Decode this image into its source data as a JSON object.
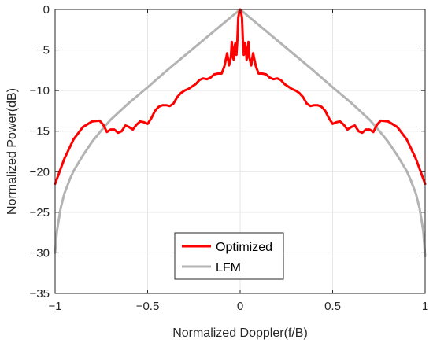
{
  "chart_data": {
    "type": "line",
    "title": "",
    "xlabel": "Normalized Doppler(f/B)",
    "ylabel": "Normalized Power(dB)",
    "xlim": [
      -1,
      1
    ],
    "ylim": [
      -35,
      0
    ],
    "xticks": [
      -1,
      -0.5,
      0,
      0.5,
      1
    ],
    "xtick_labels": [
      "−1",
      "−0.5",
      "0",
      "0.5",
      "1"
    ],
    "yticks": [
      0,
      -5,
      -10,
      -15,
      -20,
      -25,
      -30,
      -35
    ],
    "ytick_labels": [
      "0",
      "−5",
      "−10",
      "−15",
      "−20",
      "−25",
      "−30",
      "−35"
    ],
    "grid": true,
    "legend_position": "bottom-center",
    "series": [
      {
        "name": "Optimized",
        "color": "#ff0000",
        "x": [
          -1,
          -0.95,
          -0.9,
          -0.85,
          -0.8,
          -0.76,
          -0.74,
          -0.72,
          -0.7,
          -0.68,
          -0.66,
          -0.64,
          -0.62,
          -0.6,
          -0.58,
          -0.56,
          -0.54,
          -0.52,
          -0.5,
          -0.48,
          -0.46,
          -0.44,
          -0.42,
          -0.4,
          -0.38,
          -0.36,
          -0.34,
          -0.32,
          -0.3,
          -0.28,
          -0.26,
          -0.24,
          -0.22,
          -0.2,
          -0.18,
          -0.16,
          -0.14,
          -0.12,
          -0.1,
          -0.085,
          -0.07,
          -0.06,
          -0.05,
          -0.045,
          -0.04,
          -0.035,
          -0.03,
          -0.025,
          -0.02,
          -0.015,
          -0.01,
          -0.005,
          0,
          0.005,
          0.01,
          0.015,
          0.02,
          0.025,
          0.03,
          0.035,
          0.04,
          0.045,
          0.05,
          0.06,
          0.07,
          0.085,
          0.1,
          0.12,
          0.14,
          0.16,
          0.18,
          0.2,
          0.22,
          0.24,
          0.26,
          0.28,
          0.3,
          0.32,
          0.34,
          0.36,
          0.38,
          0.4,
          0.42,
          0.44,
          0.46,
          0.48,
          0.5,
          0.52,
          0.54,
          0.56,
          0.58,
          0.6,
          0.62,
          0.64,
          0.66,
          0.68,
          0.7,
          0.72,
          0.74,
          0.76,
          0.8,
          0.85,
          0.9,
          0.95,
          1
        ],
        "y": [
          -21.5,
          -18.4,
          -16.0,
          -14.5,
          -13.8,
          -13.7,
          -14.2,
          -15.1,
          -14.8,
          -14.8,
          -15.2,
          -15.0,
          -14.3,
          -14.5,
          -14.8,
          -14.2,
          -13.8,
          -13.9,
          -14.1,
          -13.4,
          -12.5,
          -12.0,
          -11.8,
          -11.8,
          -11.9,
          -11.6,
          -10.8,
          -10.3,
          -10.0,
          -9.8,
          -9.5,
          -9.2,
          -8.7,
          -8.5,
          -8.6,
          -8.4,
          -8.0,
          -7.9,
          -7.9,
          -7.0,
          -5.4,
          -6.9,
          -5.9,
          -4.0,
          -5.7,
          -6.2,
          -4.6,
          -4.1,
          -5.6,
          -3.8,
          -1.0,
          -0.3,
          0.0,
          -0.3,
          -1.0,
          -3.8,
          -5.6,
          -4.1,
          -4.6,
          -6.2,
          -5.7,
          -4.0,
          -5.9,
          -6.9,
          -5.4,
          -7.0,
          -7.9,
          -7.9,
          -8.0,
          -8.4,
          -8.6,
          -8.5,
          -8.7,
          -9.2,
          -9.5,
          -9.8,
          -10.0,
          -10.3,
          -10.8,
          -11.6,
          -11.9,
          -11.8,
          -11.8,
          -12.0,
          -12.5,
          -13.4,
          -14.1,
          -13.9,
          -13.8,
          -14.2,
          -14.8,
          -14.5,
          -14.3,
          -15.0,
          -15.2,
          -14.8,
          -14.8,
          -15.1,
          -14.2,
          -13.7,
          -13.8,
          -14.5,
          -16.0,
          -18.4,
          -21.5
        ]
      },
      {
        "name": "LFM",
        "color": "#b3b3b3",
        "x": [
          -1,
          -0.99,
          -0.97,
          -0.95,
          -0.92,
          -0.9,
          -0.85,
          -0.8,
          -0.75,
          -0.7,
          -0.6,
          -0.5,
          -0.4,
          -0.3,
          -0.2,
          -0.1,
          0,
          0.1,
          0.2,
          0.3,
          0.4,
          0.5,
          0.6,
          0.7,
          0.75,
          0.8,
          0.85,
          0.9,
          0.92,
          0.95,
          0.97,
          0.99,
          1
        ],
        "y": [
          -30.0,
          -27.3,
          -24.5,
          -22.7,
          -20.9,
          -19.9,
          -18.0,
          -16.3,
          -14.9,
          -13.6,
          -11.5,
          -9.6,
          -7.6,
          -5.7,
          -3.8,
          -1.9,
          0.0,
          -1.9,
          -3.8,
          -5.7,
          -7.6,
          -9.6,
          -11.5,
          -13.6,
          -14.9,
          -16.3,
          -18.0,
          -19.9,
          -20.9,
          -22.7,
          -24.5,
          -27.3,
          -30.4
        ]
      }
    ]
  }
}
